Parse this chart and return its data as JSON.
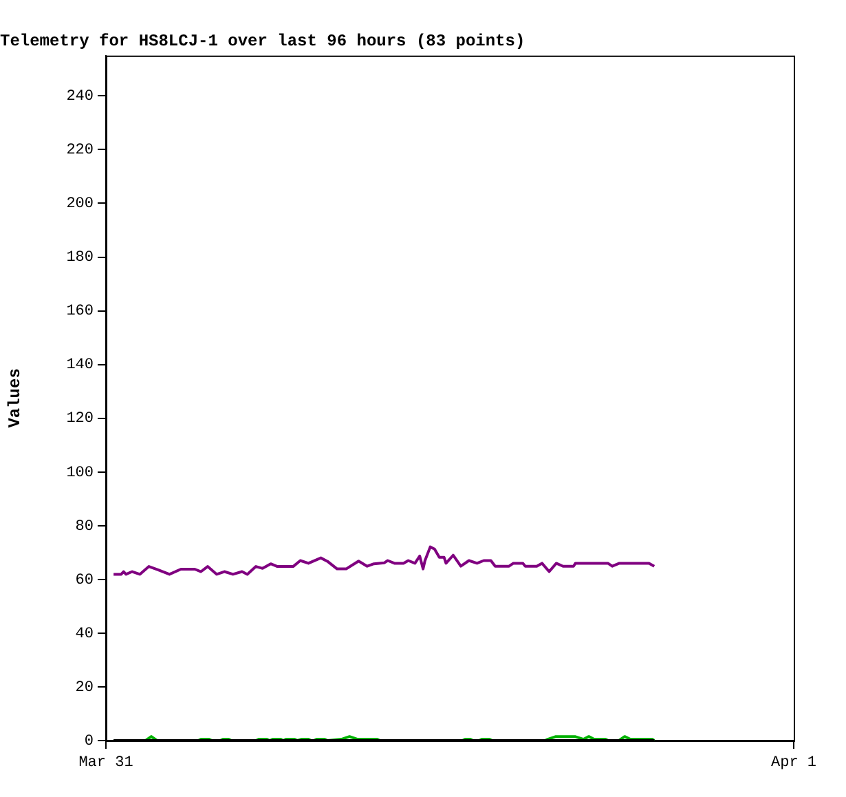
{
  "chart_data": {
    "type": "line",
    "title": "Telemetry for HS8LCJ-1 over last 96 hours (83 points)",
    "ylabel": "Values",
    "xlim": [
      "--03-31",
      "--04-01"
    ],
    "xticks": [
      {
        "value": "--03-31",
        "label": "Mar 31"
      },
      {
        "value": "--04-01",
        "label": "Apr 1"
      }
    ],
    "ylim": [
      0,
      255
    ],
    "yticks": [
      0,
      20,
      40,
      60,
      80,
      100,
      120,
      140,
      160,
      180,
      200,
      220,
      240
    ],
    "grid": false,
    "legend": false,
    "marker": "none",
    "line_style": "solid",
    "series": [
      {
        "color": "#800080",
        "x": [
          "--03-31T00:16",
          "--03-31T00:32",
          "--03-31T00:37",
          "--03-31T00:42",
          "--03-31T00:55",
          "--03-31T01:11",
          "--03-31T01:30",
          "--03-31T01:49",
          "--03-31T02:13",
          "--03-31T02:37",
          "--03-31T03:06",
          "--03-31T03:19",
          "--03-31T03:33",
          "--03-31T03:52",
          "--03-31T04:08",
          "--03-31T04:26",
          "--03-31T04:45",
          "--03-31T04:56",
          "--03-31T05:14",
          "--03-31T05:28",
          "--03-31T05:45",
          "--03-31T05:59",
          "--03-31T06:32",
          "--03-31T06:47",
          "--03-31T07:04",
          "--03-31T07:30",
          "--03-31T07:44",
          "--03-31T08:04",
          "--03-31T08:23",
          "--03-31T08:49",
          "--03-31T09:07",
          "--03-31T09:21",
          "--03-31T09:43",
          "--03-31T09:50",
          "--03-31T10:04",
          "--03-31T10:23",
          "--03-31T10:33",
          "--03-31T10:47",
          "--03-31T10:57",
          "--03-31T11:04",
          "--03-31T11:08",
          "--03-31T11:19",
          "--03-31T11:28",
          "--03-31T11:38",
          "--03-31T11:48",
          "--03-31T11:52",
          "--03-31T12:07",
          "--03-31T12:23",
          "--03-31T12:40",
          "--03-31T12:57",
          "--03-31T13:11",
          "--03-31T13:26",
          "--03-31T13:35",
          "--03-31T14:04",
          "--03-31T14:13",
          "--03-31T14:33",
          "--03-31T14:38",
          "--03-31T15:02",
          "--03-31T15:13",
          "--03-31T15:28",
          "--03-31T15:43",
          "--03-31T15:57",
          "--03-31T16:19",
          "--03-31T16:23",
          "--03-31T17:31",
          "--03-31T17:40",
          "--03-31T17:55",
          "--03-31T18:57",
          "--03-31T19:08"
        ],
        "values": [
          61.9,
          61.9,
          62.9,
          61.9,
          62.9,
          61.9,
          64.8,
          63.6,
          61.9,
          63.8,
          63.8,
          62.9,
          64.8,
          61.9,
          62.9,
          61.9,
          62.9,
          61.9,
          64.8,
          64.1,
          65.8,
          64.8,
          64.8,
          67,
          66,
          68,
          66.7,
          63.9,
          63.9,
          66.8,
          64.9,
          65.8,
          66.2,
          67,
          66,
          66,
          67,
          66,
          68.7,
          63.9,
          67,
          72.1,
          71.3,
          68.2,
          68.2,
          66,
          69,
          64.9,
          67,
          66,
          67,
          67,
          64.9,
          64.9,
          66,
          66,
          64.9,
          64.9,
          66,
          62.9,
          66,
          64.9,
          64.9,
          66,
          66,
          64.9,
          66,
          66,
          64.9
        ]
      },
      {
        "color": "#00b000",
        "x": [
          "--03-31T00:16",
          "--03-31T01:23",
          "--03-31T01:35",
          "--03-31T01:47",
          "--03-31T03:13",
          "--03-31T03:19",
          "--03-31T03:36",
          "--03-31T03:42",
          "--03-31T03:59",
          "--03-31T04:05",
          "--03-31T04:17",
          "--03-31T04:23",
          "--03-31T05:14",
          "--03-31T05:20",
          "--03-31T05:37",
          "--03-31T05:43",
          "--03-31T05:49",
          "--03-31T06:06",
          "--03-31T06:11",
          "--03-31T06:17",
          "--03-31T06:35",
          "--03-31T06:41",
          "--03-31T06:49",
          "--03-31T07:04",
          "--03-31T07:10",
          "--03-31T07:15",
          "--03-31T07:21",
          "--03-31T07:38",
          "--03-31T07:44",
          "--03-31T08:13",
          "--03-31T08:30",
          "--03-31T08:47",
          "--03-31T08:59",
          "--03-31T09:28",
          "--03-31T09:34",
          "--03-31T12:26",
          "--03-31T12:32",
          "--03-31T12:43",
          "--03-31T12:49",
          "--03-31T13:01",
          "--03-31T13:07",
          "--03-31T13:23",
          "--03-31T13:29",
          "--03-31T15:19",
          "--03-31T15:25",
          "--03-31T15:42",
          "--03-31T16:22",
          "--03-31T16:40",
          "--03-31T16:51",
          "--03-31T17:02",
          "--03-31T17:14",
          "--03-31T17:26",
          "--03-31T17:32",
          "--03-31T17:54",
          "--03-31T18:06",
          "--03-31T18:18",
          "--03-31T18:29",
          "--03-31T19:04",
          "--03-31T19:08"
        ],
        "values": [
          0,
          0,
          1.5,
          0,
          0,
          0.5,
          0.5,
          0,
          0,
          0.5,
          0.5,
          0,
          0,
          0.5,
          0.5,
          0,
          0.5,
          0.5,
          0,
          0.5,
          0.5,
          0,
          0.5,
          0.5,
          0,
          0,
          0.5,
          0.5,
          0,
          0.5,
          1.5,
          0.5,
          0.5,
          0.5,
          0,
          0,
          0.5,
          0.5,
          0,
          0,
          0.5,
          0.5,
          0,
          0,
          0.5,
          1.5,
          1.5,
          0.5,
          1.5,
          0.5,
          0.5,
          0.5,
          0,
          0,
          1.5,
          0.5,
          0.5,
          0.5,
          0
        ]
      },
      {
        "color": "#000000",
        "x": [
          "--03-31T00:16",
          "--03-31T19:08"
        ],
        "values": [
          0,
          0
        ]
      }
    ]
  }
}
